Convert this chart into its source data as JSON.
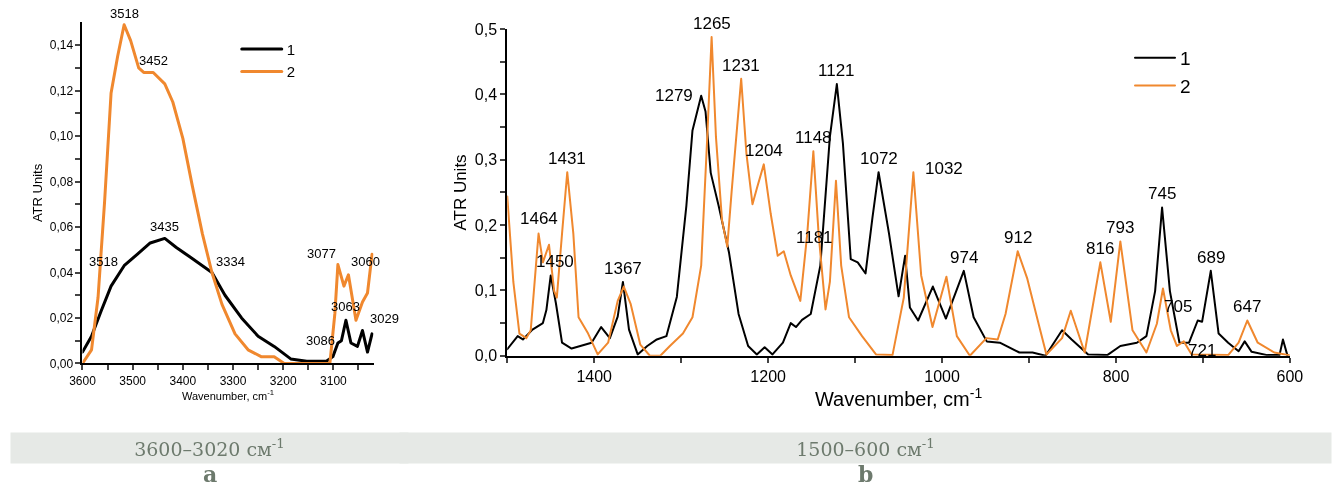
{
  "chart_data": [
    {
      "type": "line",
      "xlabel": "Wavenumber, cm$^{-1}$",
      "ylabel": "ATR Units",
      "xlim": [
        3600,
        3020
      ],
      "ylim": [
        0,
        0.15
      ],
      "xticks": [
        3600,
        {
          "value": 3550,
          "label": null
        },
        3500,
        {
          "value": 3450,
          "label": null
        },
        3400,
        {
          "value": 3350,
          "label": null
        },
        3300,
        {
          "value": 3250,
          "label": null
        },
        3200,
        {
          "value": 3150,
          "label": null
        },
        3100,
        {
          "value": 3050,
          "label": null
        }
      ],
      "yticks": [
        {
          "value": 0,
          "label": "0,00"
        },
        {
          "value": 0.01,
          "label": null
        },
        {
          "value": 0.02,
          "label": "0,02"
        },
        {
          "value": 0.03,
          "label": null
        },
        {
          "value": 0.04,
          "label": "0,04"
        },
        {
          "value": 0.05,
          "label": null
        },
        {
          "value": 0.06,
          "label": "0,06"
        },
        {
          "value": 0.07,
          "label": null
        },
        {
          "value": 0.08,
          "label": "0,08"
        },
        {
          "value": 0.09,
          "label": null
        },
        {
          "value": 0.1,
          "label": "0,10"
        },
        {
          "value": 0.11,
          "label": null
        },
        {
          "value": 0.12,
          "label": "0,12"
        },
        {
          "value": 0.13,
          "label": null
        },
        {
          "value": 0.14,
          "label": "0,14"
        }
      ],
      "grid": false,
      "legend": "top right",
      "marker": "none",
      "line_style": "solid",
      "series": [
        {
          "name": "1",
          "color": "#000000",
          "x": [
            3600,
            3582,
            3563,
            3543,
            3517,
            3491,
            3465,
            3436,
            3413,
            3387,
            3361,
            3342,
            3316,
            3283,
            3250,
            3218,
            3185,
            3153,
            3114,
            3101,
            3091,
            3084,
            3075,
            3065,
            3052,
            3042,
            3032,
            3023
          ],
          "values": [
            0.005,
            0.012,
            0.023,
            0.034,
            0.043,
            0.048,
            0.053,
            0.055,
            0.051,
            0.047,
            0.043,
            0.04,
            0.03,
            0.02,
            0.012,
            0.0075,
            0.002,
            0.001,
            0.001,
            0.003,
            0.009,
            0.01,
            0.019,
            0.009,
            0.0075,
            0.0145,
            0.005,
            0.013
          ]
        },
        {
          "name": "2",
          "color": "#f0882e",
          "x": [
            3600,
            3582,
            3569,
            3556,
            3543,
            3530,
            3517,
            3504,
            3488,
            3478,
            3459,
            3436,
            3420,
            3400,
            3381,
            3361,
            3342,
            3322,
            3296,
            3270,
            3244,
            3218,
            3198,
            3153,
            3107,
            3097,
            3091,
            3079,
            3070,
            3055,
            3042,
            3032,
            3023
          ],
          "values": [
            0.0,
            0.006,
            0.029,
            0.071,
            0.119,
            0.135,
            0.149,
            0.142,
            0.13,
            0.128,
            0.128,
            0.123,
            0.115,
            0.099,
            0.078,
            0.057,
            0.04,
            0.026,
            0.013,
            0.006,
            0.003,
            0.003,
            0.0,
            0.0,
            0.0,
            0.022,
            0.0435,
            0.034,
            0.039,
            0.019,
            0.027,
            0.031,
            0.048
          ]
        }
      ],
      "annotations": [
        {
          "text": "3518",
          "x": 3517,
          "y": 0.149
        },
        {
          "text": "3452",
          "x": 3459,
          "y": 0.128
        },
        {
          "text": "3435",
          "x": 3436,
          "y": 0.055
        },
        {
          "text": "3518",
          "x": 3517,
          "y": 0.043
        },
        {
          "text": "3334",
          "x": 3342,
          "y": 0.04
        },
        {
          "text": "3077",
          "x": 3091,
          "y": 0.0435
        },
        {
          "text": "3060",
          "x": 3070,
          "y": 0.039
        },
        {
          "text": "3063",
          "x": 3075,
          "y": 0.019
        },
        {
          "text": "3086",
          "x": 3084,
          "y": 0.01
        },
        {
          "text": "3029",
          "x": 3042,
          "y": 0.0145
        },
        "3600–3020 см$^{-1}$",
        "a"
      ]
    },
    {
      "type": "line",
      "xlabel": "Wavenumber, cm$^{-1}$",
      "ylabel": "ATR Units",
      "xlim": [
        1500,
        600
      ],
      "ylim": [
        0,
        0.5
      ],
      "xticks": [
        {
          "value": 1500,
          "label": null
        },
        1400,
        {
          "value": 1300,
          "label": null
        },
        1200,
        {
          "value": 1100,
          "label": null
        },
        1000,
        {
          "value": 900,
          "label": null
        },
        800,
        {
          "value": 700,
          "label": null
        },
        600
      ],
      "yticks": [
        {
          "value": 0,
          "label": "0,0"
        },
        {
          "value": 0.05,
          "label": null
        },
        {
          "value": 0.1,
          "label": "0,1"
        },
        {
          "value": 0.15,
          "label": null
        },
        {
          "value": 0.2,
          "label": "0,2"
        },
        {
          "value": 0.25,
          "label": null
        },
        {
          "value": 0.3,
          "label": "0,3"
        },
        {
          "value": 0.35,
          "label": null
        },
        {
          "value": 0.4,
          "label": "0,4"
        },
        {
          "value": 0.45,
          "label": null
        },
        {
          "value": 0.5,
          "label": "0,5"
        }
      ],
      "grid": false,
      "legend": "top right",
      "marker": "none",
      "line_style": "solid",
      "series": [
        {
          "name": "1",
          "color": "#000000",
          "x": [
            1500,
            1488,
            1482,
            1471,
            1459,
            1455,
            1450,
            1444,
            1437,
            1426,
            1403,
            1392,
            1382,
            1373,
            1367,
            1360,
            1350,
            1339,
            1328,
            1317,
            1305,
            1294,
            1287,
            1277,
            1272,
            1266,
            1257,
            1245,
            1234,
            1223,
            1213,
            1204,
            1195,
            1183,
            1174,
            1168,
            1161,
            1151,
            1140,
            1129,
            1121,
            1114,
            1105,
            1097,
            1088,
            1080,
            1073,
            1061,
            1050,
            1042.5,
            1037,
            1027.5,
            1010.6,
            995.6,
            975,
            963.7,
            948.6,
            933.6,
            911,
            896,
            881,
            862,
            851,
            832,
            810,
            795,
            776,
            765,
            755,
            747,
            738,
            727,
            716,
            706,
            701,
            691,
            682,
            671,
            659,
            652,
            644,
            626,
            612,
            608,
            603
          ],
          "values": [
            0.01,
            0.03,
            0.025,
            0.04,
            0.05,
            0.07,
            0.123,
            0.08,
            0.02,
            0.011,
            0.02,
            0.044,
            0.027,
            0.06,
            0.113,
            0.04,
            0.002,
            0.015,
            0.025,
            0.03,
            0.09,
            0.23,
            0.345,
            0.398,
            0.374,
            0.28,
            0.23,
            0.158,
            0.064,
            0.015,
            0.002,
            0.013,
            0.002,
            0.02,
            0.05,
            0.044,
            0.055,
            0.064,
            0.138,
            0.335,
            0.416,
            0.325,
            0.148,
            0.143,
            0.126,
            0.212,
            0.281,
            0.187,
            0.091,
            0.153,
            0.074,
            0.054,
            0.106,
            0.057,
            0.13,
            0.059,
            0.022,
            0.02,
            0.005,
            0.005,
            0.0,
            0.039,
            0.025,
            0.002,
            0.001,
            0.015,
            0.02,
            0.03,
            0.099,
            0.227,
            0.099,
            0.02,
            0.02,
            0.054,
            0.052,
            0.13,
            0.034,
            0.02,
            0.007,
            0.022,
            0.006,
            0.001,
            0.001,
            0.025,
            0.001
          ]
        },
        {
          "name": "2",
          "color": "#f0882e",
          "x": [
            1500,
            1493,
            1486,
            1478,
            1473,
            1467,
            1464,
            1459,
            1452,
            1446,
            1443,
            1437,
            1431,
            1424,
            1418,
            1407,
            1396,
            1384,
            1373,
            1366,
            1358,
            1347,
            1336,
            1324,
            1313,
            1298,
            1287,
            1277,
            1270,
            1265,
            1260,
            1253,
            1247,
            1242,
            1231,
            1225,
            1218,
            1213,
            1205,
            1197,
            1189,
            1182,
            1174,
            1163,
            1155,
            1148,
            1142,
            1134,
            1129,
            1122,
            1116,
            1107,
            1092,
            1076,
            1057,
            1044,
            1033,
            1024,
            1011,
            995,
            983,
            968,
            949,
            936,
            927,
            913,
            902,
            889,
            880,
            862,
            852,
            836,
            818,
            806,
            795,
            781,
            765,
            753,
            746,
            737,
            730,
            722,
            713,
            671,
            659,
            649,
            637,
            618,
            601
          ],
          "values": [
            0.244,
            0.113,
            0.034,
            0.027,
            0.039,
            0.138,
            0.187,
            0.143,
            0.17,
            0.099,
            0.089,
            0.187,
            0.281,
            0.187,
            0.059,
            0.034,
            0.002,
            0.02,
            0.084,
            0.106,
            0.079,
            0.017,
            0.0,
            0.0,
            0.015,
            0.034,
            0.059,
            0.138,
            0.335,
            0.488,
            0.335,
            0.207,
            0.167,
            0.251,
            0.424,
            0.31,
            0.232,
            0.256,
            0.293,
            0.217,
            0.153,
            0.16,
            0.123,
            0.084,
            0.187,
            0.313,
            0.187,
            0.071,
            0.113,
            0.268,
            0.138,
            0.059,
            0.03,
            0.002,
            0.001,
            0.089,
            0.281,
            0.123,
            0.044,
            0.121,
            0.03,
            0.0,
            0.027,
            0.025,
            0.064,
            0.16,
            0.118,
            0.049,
            0.002,
            0.027,
            0.069,
            0.005,
            0.143,
            0.052,
            0.175,
            0.039,
            0.005,
            0.049,
            0.103,
            0.039,
            0.015,
            0.022,
            0.002,
            0.001,
            0.02,
            0.054,
            0.02,
            0.005,
            0.001
          ]
        }
      ],
      "annotations": [
        {
          "text": "1464",
          "x": 1464,
          "y": 0.187
        },
        {
          "text": "1450",
          "x": 1450,
          "y": 0.123
        },
        {
          "text": "1431",
          "x": 1431,
          "y": 0.281
        },
        {
          "text": "1367",
          "x": 1367,
          "y": 0.113
        },
        {
          "text": "1279",
          "x": 1277,
          "y": 0.398
        },
        {
          "text": "1265",
          "x": 1265,
          "y": 0.488
        },
        {
          "text": "1231",
          "x": 1231,
          "y": 0.424
        },
        {
          "text": "1121",
          "x": 1121,
          "y": 0.416
        },
        {
          "text": "1204",
          "x": 1205,
          "y": 0.293
        },
        {
          "text": "1148",
          "x": 1148,
          "y": 0.313
        },
        {
          "text": "1181",
          "x": 1182,
          "y": 0.16
        },
        {
          "text": "1072",
          "x": 1073,
          "y": 0.281
        },
        {
          "text": "1032",
          "x": 1033,
          "y": 0.281
        },
        {
          "text": "974",
          "x": 975,
          "y": 0.13
        },
        {
          "text": "912",
          "x": 913,
          "y": 0.16
        },
        {
          "text": "816",
          "x": 818,
          "y": 0.143
        },
        {
          "text": "793",
          "x": 795,
          "y": 0.175
        },
        {
          "text": "745",
          "x": 747,
          "y": 0.227
        },
        {
          "text": "705",
          "x": 706,
          "y": 0.054
        },
        {
          "text": "721",
          "x": 722,
          "y": 0.022
        },
        {
          "text": "689",
          "x": 691,
          "y": 0.13
        },
        {
          "text": "647",
          "x": 649,
          "y": 0.054
        },
        "1500–600 см$^{-1}$",
        "b"
      ]
    }
  ]
}
